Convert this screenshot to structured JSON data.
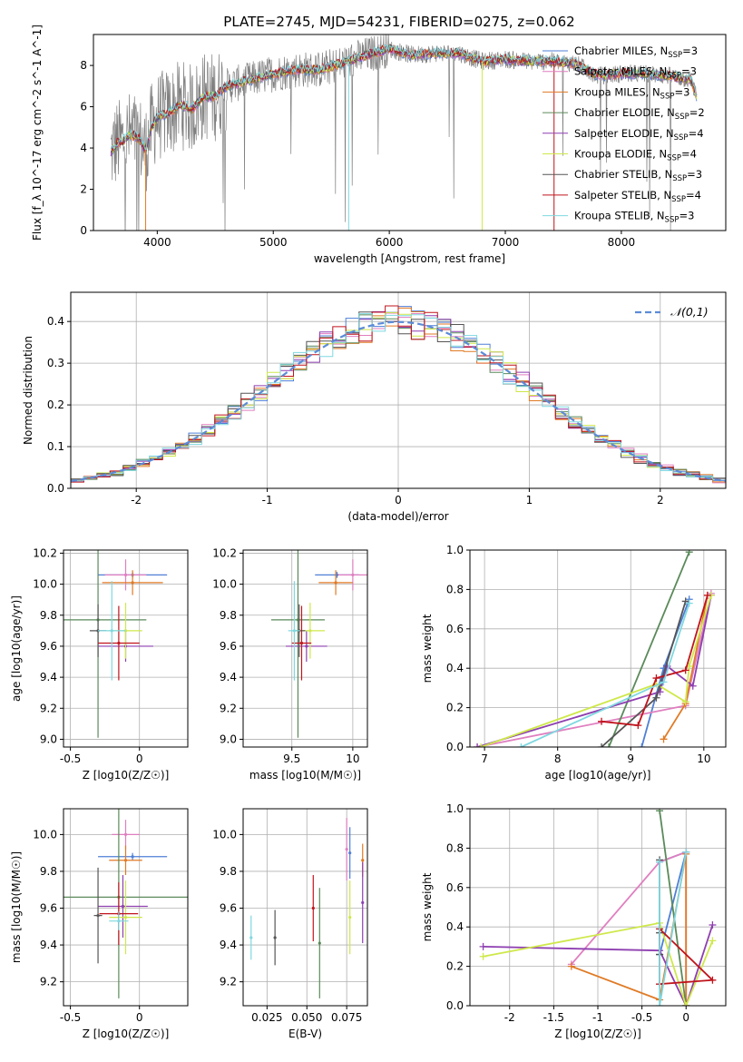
{
  "title": "PLATE=2745, MJD=54231, FIBERID=0275, z=0.062",
  "colors": {
    "Chabrier MILES": "#4f7fd6",
    "Salpeter MILES": "#e07fc0",
    "Kroupa MILES": "#e07a24",
    "Chabrier ELODIE": "#5a8a5a",
    "Salpeter ELODIE": "#8e3fb0",
    "Kroupa ELODIE": "#cfe84a",
    "Chabrier STELIB": "#555555",
    "Salpeter STELIB": "#c0141c",
    "Kroupa STELIB": "#7fd8e0",
    "data": "#808080",
    "normal": "#5b8bd8"
  },
  "chart_data": [
    {
      "id": "spectrum",
      "type": "line",
      "xlabel": "wavelength [Angstrom, rest frame]",
      "ylabel": "Flux [f_λ 10^-17 erg cm^-2 s^-1 A^-1]",
      "xlim": [
        3450,
        8900
      ],
      "ylim": [
        0,
        9.5
      ],
      "xticks": [
        4000,
        5000,
        6000,
        7000,
        8000
      ],
      "yticks": [
        0,
        2,
        4,
        6,
        8
      ],
      "grid": false,
      "legend_position": "top-right",
      "legend": [
        {
          "model": "Chabrier MILES",
          "nssp": "3"
        },
        {
          "model": "Salpeter MILES",
          "nssp": "3"
        },
        {
          "model": "Kroupa MILES",
          "nssp": "3"
        },
        {
          "model": "Chabrier ELODIE",
          "nssp": "2"
        },
        {
          "model": "Salpeter ELODIE",
          "nssp": "4"
        },
        {
          "model": "Kroupa ELODIE",
          "nssp": "4"
        },
        {
          "model": "Chabrier STELIB",
          "nssp": "3"
        },
        {
          "model": "Salpeter STELIB",
          "nssp": "4"
        },
        {
          "model": "Kroupa STELIB",
          "nssp": "3"
        }
      ],
      "continuum": {
        "x": [
          3600,
          3650,
          3700,
          3750,
          3800,
          3850,
          3900,
          3950,
          4000,
          4100,
          4200,
          4300,
          4400,
          4500,
          4600,
          4800,
          5000,
          5200,
          5400,
          5600,
          5800,
          6000,
          6200,
          6400,
          6600,
          6800,
          7000,
          7200,
          7400,
          7600,
          7800,
          8000,
          8200,
          8400,
          8600,
          8650
        ],
        "y": [
          3.8,
          4.2,
          4.3,
          4.6,
          4.6,
          4.4,
          3.9,
          5.0,
          5.5,
          5.7,
          6.1,
          5.9,
          6.5,
          6.5,
          7.0,
          7.3,
          7.6,
          7.8,
          7.8,
          8.1,
          8.5,
          8.8,
          8.5,
          8.6,
          8.6,
          8.2,
          8.3,
          8.2,
          8.2,
          8.1,
          7.5,
          7.6,
          7.6,
          7.5,
          7.3,
          6.5
        ]
      },
      "data_range": [
        3600,
        8650
      ]
    },
    {
      "id": "residuals",
      "type": "histogram",
      "xlabel": "(data-model)/error",
      "ylabel": "Normed distribution",
      "xlim": [
        -2.5,
        2.5
      ],
      "ylim": [
        0,
        0.47
      ],
      "xticks": [
        -2,
        -1,
        0,
        1,
        2
      ],
      "yticks": [
        0.0,
        0.1,
        0.2,
        0.3,
        0.4
      ],
      "grid": true,
      "legend_position": "top-right",
      "normal_curve": {
        "label": "𝒩(0,1)",
        "mean": 0,
        "sigma": 1
      }
    },
    {
      "id": "age-vs-Z",
      "type": "errorbar",
      "xlabel": "Z [log10(Z/Z☉)]",
      "ylabel": "age  [log10(age/yr)]",
      "xlim": [
        -0.55,
        0.35
      ],
      "ylim": [
        8.95,
        10.22
      ],
      "xticks": [
        -0.5,
        0.0
      ],
      "yticks": [
        9.0,
        9.2,
        9.4,
        9.6,
        9.8,
        10.0,
        10.2
      ],
      "grid": true,
      "points": [
        {
          "model": "Chabrier MILES",
          "x": -0.05,
          "xerr": 0.25,
          "y": 10.06,
          "yerr": 0.02
        },
        {
          "model": "Salpeter MILES",
          "x": -0.1,
          "xerr": 0.15,
          "y": 10.06,
          "yerr": 0.1
        },
        {
          "model": "Kroupa MILES",
          "x": -0.05,
          "xerr": 0.22,
          "y": 10.01,
          "yerr": 0.08
        },
        {
          "model": "Chabrier ELODIE",
          "x": -0.3,
          "xerr": 0.35,
          "y": 9.77,
          "yerr": 0.76
        },
        {
          "model": "Salpeter ELODIE",
          "x": -0.1,
          "xerr": 0.2,
          "y": 9.6,
          "yerr": 0.1
        },
        {
          "model": "Kroupa ELODIE",
          "x": -0.1,
          "xerr": 0.12,
          "y": 9.7,
          "yerr": 0.18
        },
        {
          "model": "Chabrier STELIB",
          "x": -0.3,
          "xerr": 0.06,
          "y": 9.7,
          "yerr": 0.17
        },
        {
          "model": "Salpeter STELIB",
          "x": -0.15,
          "xerr": 0.15,
          "y": 9.62,
          "yerr": 0.24
        },
        {
          "model": "Kroupa STELIB",
          "x": -0.2,
          "xerr": 0.1,
          "y": 9.7,
          "yerr": 0.32
        }
      ]
    },
    {
      "id": "age-vs-mass",
      "type": "errorbar",
      "xlabel": "mass [log10(M/M☉)]",
      "ylabel": "",
      "xlim": [
        9.1,
        10.12
      ],
      "ylim": [
        8.95,
        10.22
      ],
      "xticks": [
        9.5,
        10.0
      ],
      "yticks": [
        9.0,
        9.2,
        9.4,
        9.6,
        9.8,
        10.0,
        10.2
      ],
      "grid": true,
      "points": [
        {
          "model": "Chabrier MILES",
          "x": 9.87,
          "xerr": 0.18,
          "y": 10.06,
          "yerr": 0.02
        },
        {
          "model": "Salpeter MILES",
          "x": 10.0,
          "xerr": 0.12,
          "y": 10.06,
          "yerr": 0.1
        },
        {
          "model": "Kroupa MILES",
          "x": 9.86,
          "xerr": 0.14,
          "y": 10.01,
          "yerr": 0.08
        },
        {
          "model": "Chabrier ELODIE",
          "x": 9.55,
          "xerr": 0.22,
          "y": 9.77,
          "yerr": 0.76
        },
        {
          "model": "Salpeter ELODIE",
          "x": 9.62,
          "xerr": 0.17,
          "y": 9.6,
          "yerr": 0.1
        },
        {
          "model": "Kroupa ELODIE",
          "x": 9.65,
          "xerr": 0.12,
          "y": 9.7,
          "yerr": 0.18
        },
        {
          "model": "Chabrier STELIB",
          "x": 9.56,
          "xerr": 0.05,
          "y": 9.7,
          "yerr": 0.17
        },
        {
          "model": "Salpeter STELIB",
          "x": 9.58,
          "xerr": 0.08,
          "y": 9.62,
          "yerr": 0.24
        },
        {
          "model": "Kroupa STELIB",
          "x": 9.52,
          "xerr": 0.05,
          "y": 9.7,
          "yerr": 0.32
        }
      ]
    },
    {
      "id": "weight-vs-age",
      "type": "line",
      "xlabel": "age  [log10(age/yr)]",
      "ylabel": "mass weight",
      "xlim": [
        6.8,
        10.3
      ],
      "ylim": [
        0,
        1
      ],
      "xticks": [
        7,
        8,
        9,
        10
      ],
      "yticks": [
        0.0,
        0.2,
        0.4,
        0.6,
        0.8,
        1.0
      ],
      "grid": true,
      "series": [
        {
          "model": "Chabrier MILES",
          "x": [
            9.15,
            9.45,
            9.8
          ],
          "y": [
            0.0,
            0.4,
            0.75
          ]
        },
        {
          "model": "Salpeter MILES",
          "x": [
            6.9,
            9.75,
            10.1
          ],
          "y": [
            0.0,
            0.21,
            0.78
          ]
        },
        {
          "model": "Kroupa MILES",
          "x": [
            9.45,
            9.75,
            10.05
          ],
          "y": [
            0.04,
            0.22,
            0.77
          ]
        },
        {
          "model": "Chabrier ELODIE",
          "x": [
            8.7,
            9.8
          ],
          "y": [
            0.0,
            0.99
          ]
        },
        {
          "model": "Salpeter ELODIE",
          "x": [
            6.9,
            9.4,
            9.5,
            9.85,
            10.1
          ],
          "y": [
            0.0,
            0.28,
            0.41,
            0.31,
            0.77
          ]
        },
        {
          "model": "Kroupa ELODIE",
          "x": [
            6.95,
            9.35,
            9.75,
            9.8,
            10.1
          ],
          "y": [
            0.0,
            0.32,
            0.23,
            0.41,
            0.77
          ]
        },
        {
          "model": "Chabrier STELIB",
          "x": [
            8.6,
            9.35,
            9.75
          ],
          "y": [
            0.0,
            0.25,
            0.74
          ]
        },
        {
          "model": "Salpeter STELIB",
          "x": [
            8.6,
            9.1,
            9.35,
            9.75,
            10.05
          ],
          "y": [
            0.13,
            0.11,
            0.35,
            0.39,
            0.77
          ]
        },
        {
          "model": "Kroupa STELIB",
          "x": [
            7.5,
            9.45,
            9.8
          ],
          "y": [
            0.0,
            0.33,
            0.73
          ]
        }
      ]
    },
    {
      "id": "mass-vs-Z",
      "type": "errorbar",
      "xlabel": "Z [log10(Z/Z☉)]",
      "ylabel": "mass [log10(M/M☉)]",
      "xlim": [
        -0.55,
        0.35
      ],
      "ylim": [
        9.07,
        10.14
      ],
      "xticks": [
        -0.5,
        0.0
      ],
      "yticks": [
        9.2,
        9.4,
        9.6,
        9.8,
        10.0
      ],
      "grid": true,
      "points": [
        {
          "model": "Chabrier MILES",
          "x": -0.05,
          "xerr": 0.25,
          "y": 9.88,
          "yerr": 0.02
        },
        {
          "model": "Salpeter MILES",
          "x": -0.1,
          "xerr": 0.1,
          "y": 10.0,
          "yerr": 0.08
        },
        {
          "model": "Kroupa MILES",
          "x": -0.1,
          "xerr": 0.12,
          "y": 9.86,
          "yerr": 0.08
        },
        {
          "model": "Chabrier ELODIE",
          "x": -0.15,
          "xerr": 0.5,
          "y": 9.66,
          "yerr": 0.55
        },
        {
          "model": "Salpeter ELODIE",
          "x": -0.12,
          "xerr": 0.18,
          "y": 9.61,
          "yerr": 0.17
        },
        {
          "model": "Kroupa ELODIE",
          "x": -0.1,
          "xerr": 0.12,
          "y": 9.55,
          "yerr": 0.2
        },
        {
          "model": "Chabrier STELIB",
          "x": -0.3,
          "xerr": 0.03,
          "y": 9.56,
          "yerr": 0.26
        },
        {
          "model": "Salpeter STELIB",
          "x": -0.15,
          "xerr": 0.14,
          "y": 9.57,
          "yerr": 0.17
        },
        {
          "model": "Kroupa STELIB",
          "x": -0.15,
          "xerr": 0.07,
          "y": 9.53,
          "yerr": 0.05
        }
      ]
    },
    {
      "id": "mass-vs-EBV",
      "type": "errorbar",
      "xlabel": "E(B-V)",
      "ylabel": "",
      "xlim": [
        0.01,
        0.088
      ],
      "ylim": [
        9.07,
        10.14
      ],
      "xticks": [
        0.025,
        0.05,
        0.075
      ],
      "xticklabels": [
        "0.025",
        "0.050",
        "0.075"
      ],
      "yticks": [
        9.2,
        9.4,
        9.6,
        9.8,
        10.0
      ],
      "grid": true,
      "points": [
        {
          "model": "Chabrier MILES",
          "x": 0.077,
          "xerr": 0,
          "y": 9.9,
          "yerr": 0.14
        },
        {
          "model": "Salpeter MILES",
          "x": 0.075,
          "xerr": 0,
          "y": 9.92,
          "yerr": 0.17
        },
        {
          "model": "Kroupa MILES",
          "x": 0.085,
          "xerr": 0,
          "y": 9.86,
          "yerr": 0.09
        },
        {
          "model": "Chabrier ELODIE",
          "x": 0.058,
          "xerr": 0,
          "y": 9.41,
          "yerr": 0.3
        },
        {
          "model": "Salpeter ELODIE",
          "x": 0.085,
          "xerr": 0,
          "y": 9.63,
          "yerr": 0.22
        },
        {
          "model": "Kroupa ELODIE",
          "x": 0.077,
          "xerr": 0,
          "y": 9.55,
          "yerr": 0.2
        },
        {
          "model": "Chabrier STELIB",
          "x": 0.03,
          "xerr": 0,
          "y": 9.44,
          "yerr": 0.15
        },
        {
          "model": "Salpeter STELIB",
          "x": 0.054,
          "xerr": 0,
          "y": 9.6,
          "yerr": 0.18
        },
        {
          "model": "Kroupa STELIB",
          "x": 0.015,
          "xerr": 0,
          "y": 9.44,
          "yerr": 0.12
        }
      ]
    },
    {
      "id": "weight-vs-Z",
      "type": "line",
      "xlabel": "Z [log10(Z/Z☉)]",
      "ylabel": "mass weight",
      "xlim": [
        -2.45,
        0.45
      ],
      "ylim": [
        0,
        1
      ],
      "xticks": [
        -2.0,
        -1.5,
        -1.0,
        -0.5,
        0.0
      ],
      "yticks": [
        0.0,
        0.2,
        0.4,
        0.6,
        0.8,
        1.0
      ],
      "grid": true,
      "series": [
        {
          "model": "Chabrier MILES",
          "x": [
            -0.3,
            0.0,
            -0.3
          ],
          "y": [
            0.73,
            0.78,
            0.26
          ]
        },
        {
          "model": "Salpeter MILES",
          "x": [
            -1.3,
            -0.3,
            0.0,
            0.0
          ],
          "y": [
            0.21,
            0.73,
            0.78,
            0.0
          ]
        },
        {
          "model": "Kroupa MILES",
          "x": [
            -1.3,
            -0.3,
            0.0,
            0.0
          ],
          "y": [
            0.2,
            0.03,
            0.77,
            0.0
          ]
        },
        {
          "model": "Chabrier ELODIE",
          "x": [
            -0.3,
            0.0
          ],
          "y": [
            0.99,
            0.0
          ]
        },
        {
          "model": "Salpeter ELODIE",
          "x": [
            -2.3,
            -0.3,
            0.0,
            0.3,
            0.0
          ],
          "y": [
            0.3,
            0.28,
            0.0,
            0.41,
            0.0
          ]
        },
        {
          "model": "Kroupa ELODIE",
          "x": [
            -2.3,
            -0.3,
            0.0,
            0.3,
            0.0
          ],
          "y": [
            0.25,
            0.42,
            0.0,
            0.33,
            0.0
          ]
        },
        {
          "model": "Chabrier STELIB",
          "x": [
            -0.3,
            -0.3,
            -0.3
          ],
          "y": [
            0.74,
            0.37,
            0.26
          ]
        },
        {
          "model": "Salpeter STELIB",
          "x": [
            -0.3,
            0.3,
            -0.3,
            -0.3
          ],
          "y": [
            0.11,
            0.13,
            0.39,
            0.11
          ]
        },
        {
          "model": "Kroupa STELIB",
          "x": [
            -0.3,
            -0.3,
            0.0
          ],
          "y": [
            0.73,
            0.0,
            0.78
          ]
        }
      ]
    }
  ]
}
